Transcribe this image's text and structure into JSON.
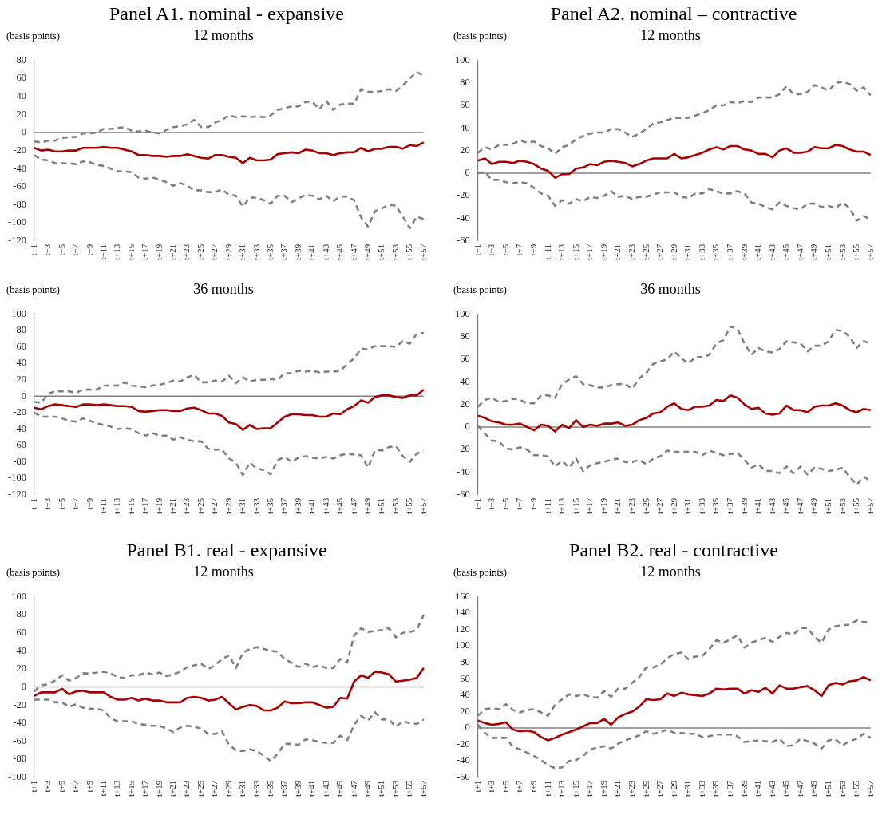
{
  "chart_data": [
    {
      "type": "line",
      "title": "Panel A1. nominal - expansive",
      "subtitle": "12 months",
      "ylabel": "(basis points)",
      "grid": false,
      "legend": false,
      "categories": [
        "t+1",
        null,
        "t+3",
        null,
        "t+5",
        null,
        "t+7",
        null,
        "t+9",
        null,
        "t+11",
        null,
        "t+13",
        null,
        "t+15",
        null,
        "t+17",
        null,
        "t+19",
        null,
        "t+21",
        null,
        "t+23",
        null,
        "t+25",
        null,
        "t+27",
        null,
        "t+29",
        null,
        "t+31",
        null,
        "t+33",
        null,
        "t+35",
        null,
        "t+37",
        null,
        "t+39",
        null,
        "t+41",
        null,
        "t+43",
        null,
        "t+45",
        null,
        "t+47",
        null,
        "t+49",
        null,
        "t+51",
        null,
        "t+53",
        null,
        "t+55",
        null,
        "t+57"
      ],
      "ylim": [
        -120,
        80
      ],
      "yticks": [
        -120,
        -100,
        -80,
        -60,
        -40,
        -20,
        0,
        20,
        40,
        60,
        80
      ],
      "ref_lines": [
        {
          "axis": "y",
          "value": 0,
          "color": "#808080"
        }
      ],
      "series": [
        {
          "color": "#808080",
          "line_style": "dashed",
          "values": [
            -10,
            -11,
            -9,
            -9,
            -6,
            -5,
            -5,
            -1,
            -1,
            0,
            4,
            4,
            5,
            6,
            2,
            1,
            2,
            0,
            -1,
            3,
            6,
            7,
            9,
            14,
            6,
            6,
            11,
            14,
            19,
            17,
            18,
            17,
            18,
            17,
            19,
            25,
            27,
            29,
            29,
            34,
            34,
            26,
            35,
            25,
            31,
            32,
            32,
            48,
            45,
            45,
            46,
            48,
            46,
            52,
            60,
            67,
            63
          ]
        },
        {
          "color": "#808080",
          "line_style": "dashed",
          "values": [
            -25,
            -30,
            -31,
            -34,
            -34,
            -34,
            -35,
            -32,
            -33,
            -36,
            -37,
            -40,
            -43,
            -43,
            -44,
            -50,
            -51,
            -50,
            -52,
            -55,
            -59,
            -56,
            -59,
            -64,
            -64,
            -66,
            -66,
            -63,
            -69,
            -70,
            -82,
            -72,
            -72,
            -75,
            -79,
            -70,
            -70,
            -77,
            -73,
            -69,
            -70,
            -74,
            -70,
            -76,
            -71,
            -71,
            -75,
            -94,
            -104,
            -87,
            -84,
            -80,
            -81,
            -93,
            -106,
            -93,
            -96
          ]
        },
        {
          "color": "#a50000",
          "line_style": "solid",
          "values": [
            -17,
            -20,
            -19,
            -21,
            -21,
            -20,
            -20,
            -17,
            -17,
            -17,
            -16,
            -17,
            -17,
            -19,
            -21,
            -25,
            -25,
            -26,
            -26,
            -27,
            -26,
            -26,
            -24,
            -26,
            -28,
            -29,
            -25,
            -25,
            -27,
            -28,
            -34,
            -28,
            -31,
            -31,
            -30,
            -24,
            -23,
            -22,
            -23,
            -19,
            -20,
            -23,
            -23,
            -25,
            -23,
            -22,
            -22,
            -17,
            -21,
            -18,
            -18,
            -16,
            -16,
            -18,
            -14,
            -15,
            -11
          ]
        }
      ]
    },
    {
      "type": "line",
      "title": "Panel A2. nominal – contractive",
      "subtitle": "12 months",
      "ylabel": "(basis points)",
      "grid": false,
      "legend": false,
      "categories": [
        "t+1",
        null,
        "t+3",
        null,
        "t+5",
        null,
        "t+7",
        null,
        "t+9",
        null,
        "t+11",
        null,
        "t+13",
        null,
        "t+15",
        null,
        "t+17",
        null,
        "t+19",
        null,
        "t+21",
        null,
        "t+23",
        null,
        "t+25",
        null,
        "t+27",
        null,
        "t+29",
        null,
        "t+31",
        null,
        "t+33",
        null,
        "t+35",
        null,
        "t+37",
        null,
        "t+39",
        null,
        "t+41",
        null,
        "t+43",
        null,
        "t+45",
        null,
        "t+47",
        null,
        "t+49",
        null,
        "t+51",
        null,
        "t+53",
        null,
        "t+55",
        null,
        "t+57"
      ],
      "ylim": [
        -60,
        100
      ],
      "yticks": [
        -60,
        -40,
        -20,
        0,
        20,
        40,
        60,
        80,
        100
      ],
      "ref_lines": [
        {
          "axis": "y",
          "value": 0,
          "color": "#808080"
        }
      ],
      "series": [
        {
          "color": "#808080",
          "line_style": "dashed",
          "values": [
            18,
            23,
            21,
            25,
            25,
            26,
            29,
            27,
            28,
            24,
            22,
            17,
            23,
            25,
            30,
            33,
            35,
            36,
            36,
            39,
            39,
            36,
            32,
            35,
            39,
            44,
            45,
            47,
            49,
            49,
            49,
            51,
            53,
            56,
            60,
            60,
            63,
            62,
            64,
            63,
            67,
            67,
            67,
            70,
            77,
            70,
            70,
            72,
            78,
            76,
            73,
            80,
            81,
            79,
            73,
            76,
            69
          ]
        },
        {
          "color": "#808080",
          "line_style": "dashed",
          "values": [
            0,
            1,
            -6,
            -6,
            -8,
            -9,
            -8,
            -9,
            -13,
            -18,
            -20,
            -29,
            -24,
            -27,
            -23,
            -25,
            -21,
            -22,
            -20,
            -16,
            -21,
            -20,
            -23,
            -21,
            -21,
            -19,
            -17,
            -17,
            -17,
            -21,
            -22,
            -18,
            -18,
            -14,
            -16,
            -18,
            -18,
            -16,
            -18,
            -26,
            -27,
            -30,
            -32,
            -26,
            -29,
            -31,
            -32,
            -27,
            -27,
            -30,
            -29,
            -31,
            -26,
            -31,
            -42,
            -38,
            -41
          ]
        },
        {
          "color": "#a50000",
          "line_style": "solid",
          "values": [
            11,
            13,
            8,
            10,
            10,
            9,
            11,
            10,
            8,
            4,
            2,
            -4,
            -1,
            -1,
            4,
            5,
            8,
            7,
            10,
            11,
            10,
            9,
            6,
            8,
            11,
            13,
            13,
            13,
            17,
            13,
            14,
            16,
            18,
            21,
            23,
            21,
            24,
            24,
            21,
            20,
            17,
            17,
            14,
            20,
            22,
            18,
            18,
            19,
            23,
            22,
            22,
            25,
            24,
            21,
            19,
            19,
            16
          ]
        }
      ]
    },
    {
      "type": "line",
      "subtitle": "36 months",
      "ylabel": "(basis points)",
      "grid": false,
      "legend": false,
      "categories": [
        "t+1",
        null,
        "t+3",
        null,
        "t+5",
        null,
        "t+7",
        null,
        "t+9",
        null,
        "t+11",
        null,
        "t+13",
        null,
        "t+15",
        null,
        "t+17",
        null,
        "t+19",
        null,
        "t+21",
        null,
        "t+23",
        null,
        "t+25",
        null,
        "t+27",
        null,
        "t+29",
        null,
        "t+31",
        null,
        "t+33",
        null,
        "t+35",
        null,
        "t+37",
        null,
        "t+39",
        null,
        "t+41",
        null,
        "t+43",
        null,
        "t+45",
        null,
        "t+47",
        null,
        "t+49",
        null,
        "t+51",
        null,
        "t+53",
        null,
        "t+55",
        null,
        "t+57"
      ],
      "ylim": [
        -120,
        100
      ],
      "yticks": [
        -120,
        -100,
        -80,
        -60,
        -40,
        -20,
        0,
        20,
        40,
        60,
        80,
        100
      ],
      "ref_lines": [
        {
          "axis": "y",
          "value": 0,
          "color": "#808080"
        }
      ],
      "series": [
        {
          "color": "#808080",
          "line_style": "dashed",
          "values": [
            -7,
            -8,
            3,
            6,
            6,
            6,
            4,
            8,
            8,
            8,
            13,
            13,
            13,
            17,
            13,
            12,
            11,
            13,
            14,
            16,
            19,
            18,
            23,
            26,
            17,
            17,
            19,
            18,
            25,
            16,
            23,
            18,
            20,
            20,
            21,
            20,
            28,
            28,
            31,
            30,
            31,
            29,
            30,
            30,
            31,
            39,
            46,
            58,
            57,
            61,
            61,
            61,
            60,
            67,
            64,
            76,
            77
          ]
        },
        {
          "color": "#808080",
          "line_style": "dashed",
          "values": [
            -20,
            -25,
            -25,
            -25,
            -27,
            -30,
            -31,
            -27,
            -30,
            -33,
            -35,
            -37,
            -40,
            -39,
            -40,
            -45,
            -48,
            -45,
            -48,
            -48,
            -53,
            -50,
            -53,
            -55,
            -55,
            -64,
            -65,
            -65,
            -76,
            -81,
            -96,
            -81,
            -88,
            -90,
            -95,
            -78,
            -74,
            -80,
            -75,
            -73,
            -75,
            -76,
            -74,
            -76,
            -72,
            -70,
            -71,
            -72,
            -87,
            -66,
            -66,
            -62,
            -61,
            -73,
            -80,
            -70,
            -67
          ]
        },
        {
          "color": "#a50000",
          "line_style": "solid",
          "values": [
            -14,
            -16,
            -12,
            -10,
            -11,
            -12,
            -13,
            -10,
            -10,
            -11,
            -10,
            -11,
            -12,
            -12,
            -13,
            -18,
            -19,
            -18,
            -17,
            -17,
            -18,
            -18,
            -15,
            -14,
            -17,
            -21,
            -21,
            -24,
            -32,
            -34,
            -41,
            -35,
            -40,
            -39,
            -39,
            -32,
            -25,
            -22,
            -22,
            -23,
            -23,
            -25,
            -25,
            -21,
            -22,
            -16,
            -12,
            -5,
            -8,
            -1,
            1,
            1,
            -1,
            -2,
            1,
            1,
            8
          ]
        }
      ]
    },
    {
      "type": "line",
      "subtitle": "36 months",
      "ylabel": "(basis points)",
      "grid": false,
      "legend": false,
      "categories": [
        "t+1",
        null,
        "t+3",
        null,
        "t+5",
        null,
        "t+7",
        null,
        "t+9",
        null,
        "t+11",
        null,
        "t+13",
        null,
        "t+15",
        null,
        "t+17",
        null,
        "t+19",
        null,
        "t+21",
        null,
        "t+23",
        null,
        "t+25",
        null,
        "t+27",
        null,
        "t+29",
        null,
        "t+31",
        null,
        "t+33",
        null,
        "t+35",
        null,
        "t+37",
        null,
        "t+39",
        null,
        "t+41",
        null,
        "t+43",
        null,
        "t+45",
        null,
        "t+47",
        null,
        "t+49",
        null,
        "t+51",
        null,
        "t+53",
        null,
        "t+55",
        null,
        "t+57"
      ],
      "ylim": [
        -60,
        100
      ],
      "yticks": [
        -60,
        -40,
        -20,
        0,
        20,
        40,
        60,
        80,
        100
      ],
      "ref_lines": [
        {
          "axis": "y",
          "value": 0,
          "color": "#808080"
        }
      ],
      "series": [
        {
          "color": "#808080",
          "line_style": "dashed",
          "values": [
            18,
            24,
            26,
            22,
            23,
            25,
            24,
            21,
            21,
            28,
            28,
            26,
            38,
            42,
            45,
            38,
            37,
            35,
            35,
            37,
            38,
            38,
            34,
            43,
            48,
            56,
            58,
            60,
            67,
            61,
            56,
            62,
            62,
            64,
            74,
            77,
            89,
            87,
            74,
            64,
            70,
            67,
            66,
            69,
            76,
            75,
            74,
            67,
            72,
            72,
            76,
            86,
            85,
            80,
            70,
            76,
            74
          ]
        },
        {
          "color": "#808080",
          "line_style": "dashed",
          "values": [
            1,
            -6,
            -12,
            -13,
            -19,
            -20,
            -18,
            -20,
            -25,
            -25,
            -26,
            -35,
            -30,
            -36,
            -28,
            -39,
            -34,
            -32,
            -31,
            -29,
            -28,
            -31,
            -31,
            -29,
            -33,
            -28,
            -26,
            -21,
            -22,
            -22,
            -22,
            -22,
            -25,
            -21,
            -23,
            -25,
            -24,
            -23,
            -29,
            -36,
            -33,
            -39,
            -39,
            -41,
            -35,
            -41,
            -35,
            -42,
            -36,
            -37,
            -39,
            -38,
            -36,
            -44,
            -51,
            -44,
            -48
          ]
        },
        {
          "color": "#a50000",
          "line_style": "solid",
          "values": [
            10,
            8,
            5,
            4,
            2,
            2,
            3,
            0,
            -3,
            2,
            1,
            -4,
            2,
            -1,
            6,
            0,
            2,
            1,
            3,
            3,
            4,
            1,
            2,
            6,
            8,
            12,
            13,
            18,
            21,
            16,
            15,
            18,
            18,
            19,
            24,
            23,
            28,
            26,
            20,
            16,
            17,
            12,
            11,
            12,
            19,
            15,
            15,
            13,
            18,
            19,
            19,
            21,
            19,
            15,
            13,
            16,
            15
          ]
        }
      ]
    },
    {
      "type": "line",
      "title": "Panel B1. real - expansive",
      "subtitle": "12 months",
      "ylabel": "(basis points)",
      "grid": false,
      "legend": false,
      "categories": [
        "t+1",
        null,
        "t+3",
        null,
        "t+5",
        null,
        "t+7",
        null,
        "t+9",
        null,
        "t+11",
        null,
        "t+13",
        null,
        "t+15",
        null,
        "t+17",
        null,
        "t+19",
        null,
        "t+21",
        null,
        "t+23",
        null,
        "t+25",
        null,
        "t+27",
        null,
        "t+29",
        null,
        "t+31",
        null,
        "t+33",
        null,
        "t+35",
        null,
        "t+37",
        null,
        "t+39",
        null,
        "t+41",
        null,
        "t+43",
        null,
        "t+45",
        null,
        "t+47",
        null,
        "t+49",
        null,
        "t+51",
        null,
        "t+53",
        null,
        "t+55",
        null,
        "t+57"
      ],
      "ylim": [
        -100,
        100
      ],
      "yticks": [
        -100,
        -80,
        -60,
        -40,
        -20,
        0,
        20,
        40,
        60,
        80,
        100
      ],
      "ref_lines": [
        {
          "axis": "y",
          "value": 0,
          "color": "#a6a6a6"
        }
      ],
      "series": [
        {
          "color": "#808080",
          "line_style": "dashed",
          "values": [
            -5,
            2,
            3,
            7,
            13,
            7,
            10,
            15,
            15,
            16,
            17,
            15,
            11,
            10,
            13,
            13,
            16,
            14,
            16,
            12,
            14,
            17,
            22,
            24,
            26,
            20,
            24,
            31,
            35,
            21,
            38,
            42,
            44,
            42,
            40,
            39,
            31,
            27,
            22,
            26,
            22,
            24,
            21,
            21,
            31,
            27,
            57,
            65,
            61,
            62,
            63,
            65,
            55,
            60,
            61,
            63,
            80
          ]
        },
        {
          "color": "#808080",
          "line_style": "dashed",
          "values": [
            -14,
            -14,
            -14,
            -17,
            -17,
            -22,
            -19,
            -23,
            -24,
            -24,
            -26,
            -35,
            -38,
            -38,
            -38,
            -41,
            -42,
            -43,
            -43,
            -46,
            -50,
            -45,
            -43,
            -44,
            -46,
            -52,
            -52,
            -49,
            -64,
            -70,
            -71,
            -69,
            -71,
            -76,
            -82,
            -74,
            -63,
            -63,
            -64,
            -58,
            -59,
            -61,
            -62,
            -62,
            -54,
            -59,
            -42,
            -32,
            -37,
            -28,
            -36,
            -36,
            -44,
            -38,
            -40,
            -41,
            -36
          ]
        },
        {
          "color": "#a50000",
          "line_style": "solid",
          "values": [
            -10,
            -6,
            -6,
            -6,
            -2,
            -8,
            -5,
            -4,
            -6,
            -6,
            -6,
            -11,
            -14,
            -14,
            -12,
            -15,
            -13,
            -15,
            -15,
            -17,
            -17,
            -17,
            -12,
            -11,
            -12,
            -15,
            -14,
            -11,
            -18,
            -25,
            -22,
            -20,
            -21,
            -26,
            -26,
            -23,
            -16,
            -18,
            -18,
            -17,
            -17,
            -20,
            -23,
            -22,
            -12,
            -13,
            6,
            13,
            10,
            17,
            16,
            14,
            6,
            7,
            8,
            10,
            21
          ]
        }
      ]
    },
    {
      "type": "line",
      "title": "Panel B2. real - contractive",
      "subtitle": "12 months",
      "ylabel": "(basis points)",
      "grid": false,
      "legend": false,
      "categories": [
        "t+1",
        null,
        "t+3",
        null,
        "t+5",
        null,
        "t+7",
        null,
        "t+9",
        null,
        "t+11",
        null,
        "t+13",
        null,
        "t+15",
        null,
        "t+17",
        null,
        "t+19",
        null,
        "t+21",
        null,
        "t+23",
        null,
        "t+25",
        null,
        "t+27",
        null,
        "t+29",
        null,
        "t+31",
        null,
        "t+33",
        null,
        "t+35",
        null,
        "t+37",
        null,
        "t+39",
        null,
        "t+41",
        null,
        "t+43",
        null,
        "t+45",
        null,
        "t+47",
        null,
        "t+49",
        null,
        "t+51",
        null,
        "t+53",
        null,
        "t+55",
        null,
        "t+57"
      ],
      "ylim": [
        -60,
        160
      ],
      "yticks": [
        -60,
        -40,
        -20,
        0,
        20,
        40,
        60,
        80,
        100,
        120,
        140,
        160
      ],
      "ref_lines": [
        {
          "axis": "y",
          "value": 0,
          "color": "#808080"
        }
      ],
      "series": [
        {
          "color": "#808080",
          "line_style": "dashed",
          "values": [
            15,
            23,
            24,
            23,
            29,
            22,
            19,
            22,
            23,
            19,
            15,
            28,
            35,
            41,
            39,
            41,
            38,
            37,
            45,
            38,
            48,
            48,
            55,
            62,
            74,
            74,
            77,
            85,
            90,
            92,
            84,
            87,
            88,
            96,
            107,
            104,
            108,
            113,
            98,
            104,
            107,
            110,
            105,
            111,
            116,
            114,
            122,
            122,
            111,
            104,
            120,
            124,
            125,
            126,
            131,
            129,
            129
          ]
        },
        {
          "color": "#808080",
          "line_style": "dashed",
          "values": [
            4,
            -6,
            -12,
            -12,
            -12,
            -23,
            -26,
            -30,
            -34,
            -39,
            -45,
            -49,
            -48,
            -40,
            -39,
            -34,
            -26,
            -24,
            -22,
            -25,
            -19,
            -15,
            -12,
            -9,
            -4,
            -7,
            -5,
            -2,
            -6,
            -6,
            -7,
            -7,
            -11,
            -10,
            -8,
            -8,
            -8,
            -10,
            -17,
            -16,
            -15,
            -16,
            -17,
            -13,
            -22,
            -21,
            -13,
            -16,
            -19,
            -25,
            -15,
            -14,
            -21,
            -16,
            -13,
            -7,
            -12
          ]
        },
        {
          "color": "#a50000",
          "line_style": "solid",
          "values": [
            9,
            6,
            4,
            5,
            7,
            -2,
            -4,
            -3,
            -5,
            -11,
            -15,
            -12,
            -8,
            -5,
            -2,
            2,
            6,
            6,
            11,
            4,
            13,
            17,
            20,
            26,
            35,
            34,
            35,
            42,
            39,
            43,
            41,
            40,
            39,
            42,
            48,
            47,
            48,
            48,
            42,
            46,
            44,
            49,
            42,
            52,
            48,
            48,
            50,
            51,
            46,
            39,
            52,
            55,
            53,
            57,
            58,
            62,
            58
          ]
        }
      ]
    }
  ]
}
